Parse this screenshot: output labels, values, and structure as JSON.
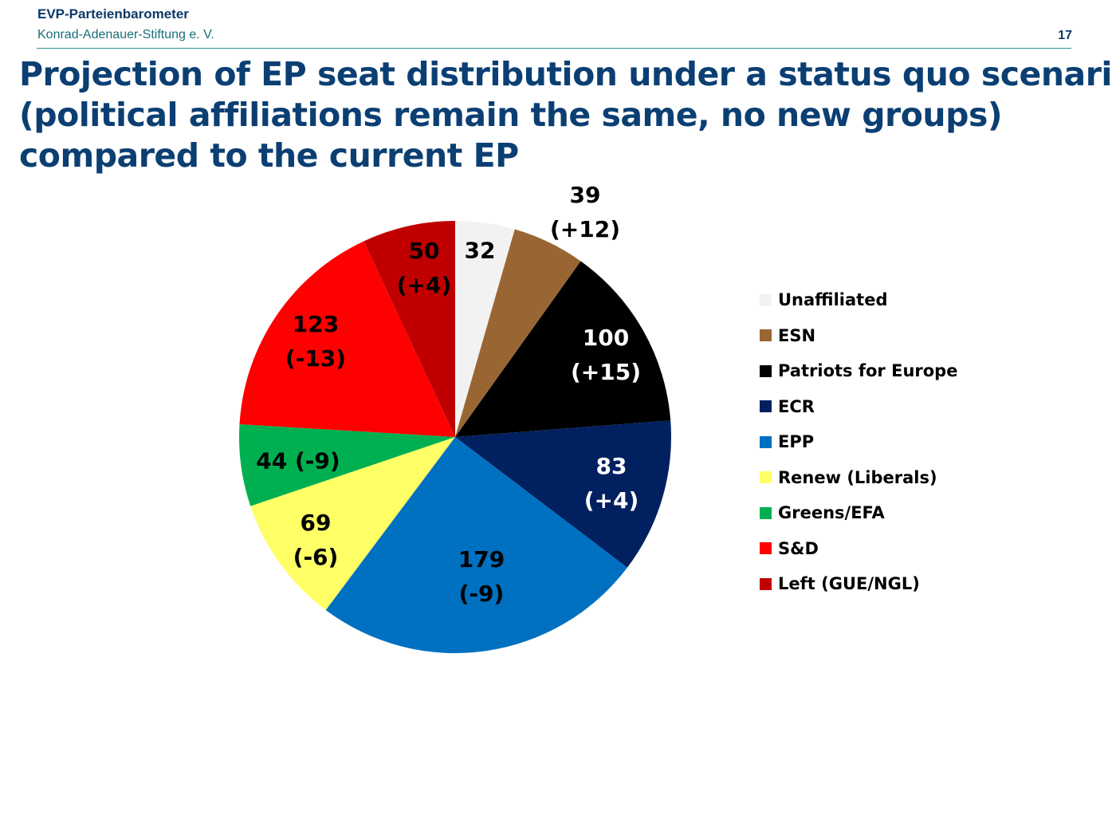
{
  "header": {
    "org_title": "EVP-Parteienbarometer",
    "subtitle": "Konrad-Adenauer-Stiftung e. V.",
    "page_number": "17"
  },
  "title_lines": [
    "Projection of EP seat distribution under a status quo scenario",
    "(political affiliations remain the same, no new groups)",
    "compared to the current EP"
  ],
  "chart_data": {
    "type": "pie",
    "title": "Projection of EP seat distribution under a status quo scenario (political affiliations remain the same, no new groups) compared to the current EP",
    "legend_position": "right",
    "slices": [
      {
        "name": "Unaffiliated",
        "value": 32,
        "change": "",
        "color": "#f2f2f2",
        "label_lines": [
          "32"
        ],
        "label_color": "#000000"
      },
      {
        "name": "ESN",
        "value": 39,
        "change": "+12",
        "color": "#996633",
        "label_lines": [
          "39",
          "(+12)"
        ],
        "label_color": "#000000"
      },
      {
        "name": "Patriots for Europe",
        "value": 100,
        "change": "+15",
        "color": "#000000",
        "label_lines": [
          "100",
          "(+15)"
        ],
        "label_color": "#ffffff"
      },
      {
        "name": "ECR",
        "value": 83,
        "change": "+4",
        "color": "#002060",
        "label_lines": [
          "83",
          "(+4)"
        ],
        "label_color": "#ffffff"
      },
      {
        "name": "EPP",
        "value": 179,
        "change": "-9",
        "color": "#0070c0",
        "label_lines": [
          "179",
          "(-9)"
        ],
        "label_color": "#000000"
      },
      {
        "name": "Renew (Liberals)",
        "value": 69,
        "change": "-6",
        "color": "#ffff66",
        "label_lines": [
          "69",
          "(-6)"
        ],
        "label_color": "#000000"
      },
      {
        "name": "Greens/EFA",
        "value": 44,
        "change": "-9",
        "color": "#00b050",
        "label_lines": [
          "44 (-9)"
        ],
        "label_color": "#000000"
      },
      {
        "name": "S&D",
        "value": 123,
        "change": "-13",
        "color": "#ff0000",
        "label_lines": [
          "123",
          "(-13)"
        ],
        "label_color": "#000000"
      },
      {
        "name": "Left (GUE/NGL)",
        "value": 50,
        "change": "+4",
        "color": "#c00000",
        "label_lines": [
          "50",
          "(+4)"
        ],
        "label_color": "#000000"
      }
    ]
  }
}
